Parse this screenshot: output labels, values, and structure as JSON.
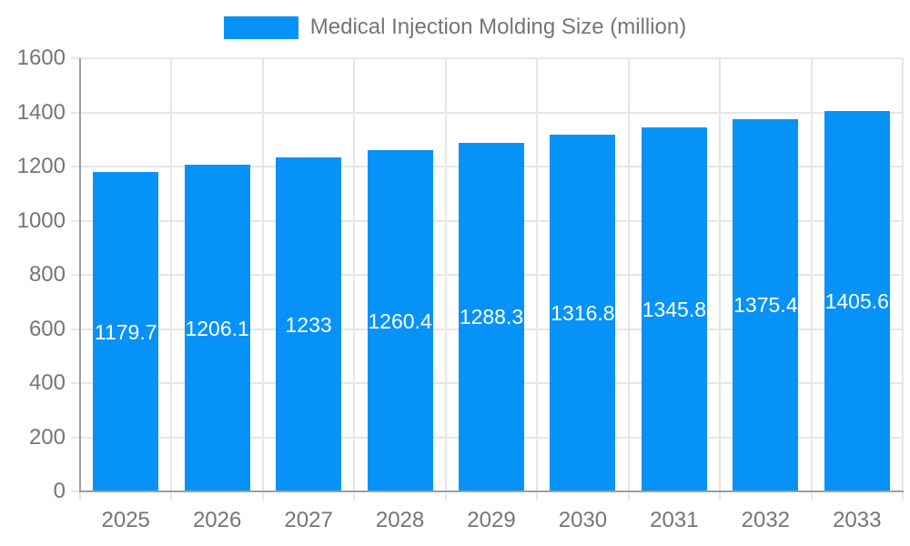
{
  "legend": {
    "label": "Medical Injection Molding Size (million)"
  },
  "chart_data": {
    "type": "bar",
    "title": "Medical Injection Molding Size (million)",
    "xlabel": "",
    "ylabel": "",
    "categories": [
      "2025",
      "2026",
      "2027",
      "2028",
      "2029",
      "2030",
      "2031",
      "2032",
      "2033"
    ],
    "values": [
      1179.7,
      1206.1,
      1233,
      1260.4,
      1288.3,
      1316.8,
      1345.8,
      1375.4,
      1405.6
    ],
    "value_labels": [
      "1179.7",
      "1206.1",
      "1233",
      "1260.4",
      "1288.3",
      "1316.8",
      "1345.8",
      "1375.4",
      "1405.6"
    ],
    "ylim": [
      0,
      1600
    ],
    "yticks": [
      0,
      200,
      400,
      600,
      800,
      1000,
      1200,
      1400,
      1600
    ],
    "grid": true,
    "legend_position": "top",
    "colors": {
      "bar": "#0792f8",
      "grid": "#e6e6e6",
      "axis": "#9e9e9e",
      "tick_text": "#757575",
      "bar_label": "#ffffff",
      "background": "#ffffff"
    }
  }
}
